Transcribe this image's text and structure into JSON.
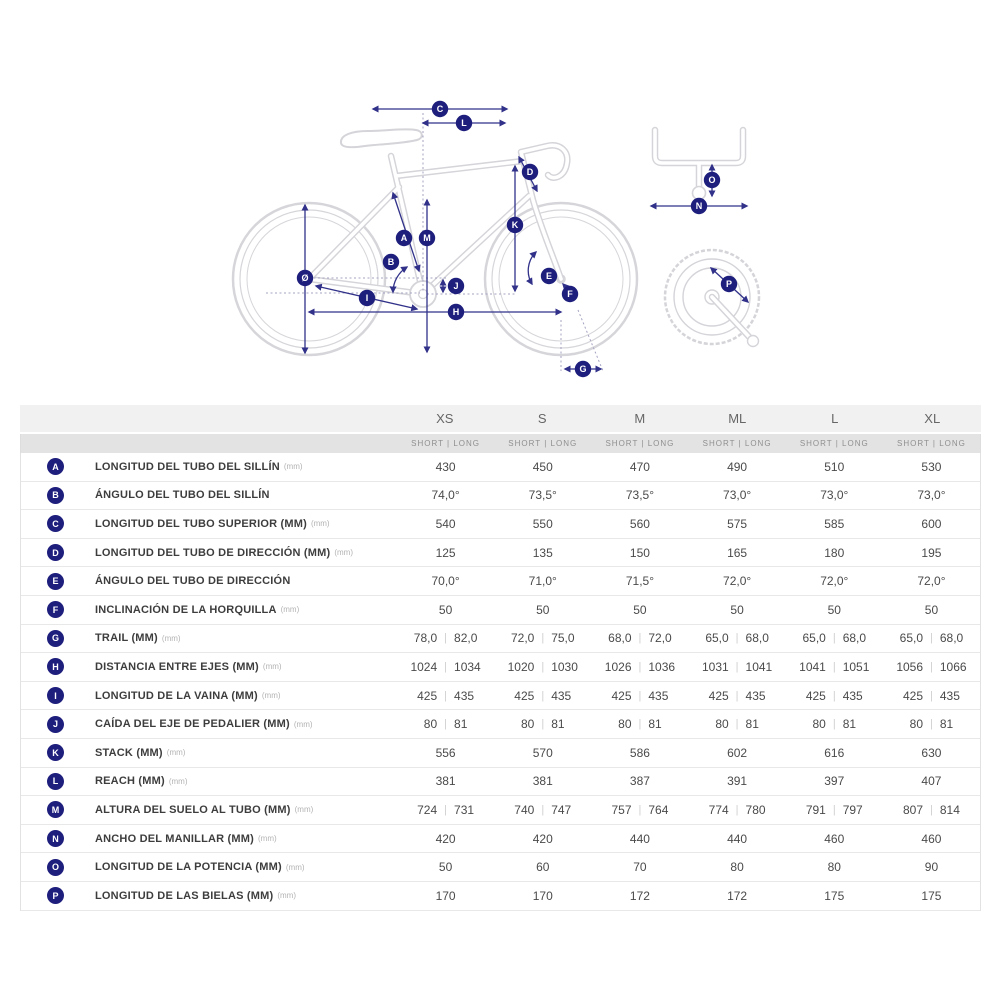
{
  "diagram": {
    "markers": {
      "a": "A",
      "b": "B",
      "c": "C",
      "d": "D",
      "e": "E",
      "f": "F",
      "g": "G",
      "h": "H",
      "i": "I",
      "j": "J",
      "k": "K",
      "l": "L",
      "m": "M",
      "n": "N",
      "o": "O",
      "p": "P",
      "wheel": "Ø"
    }
  },
  "table": {
    "sizes": [
      "XS",
      "S",
      "M",
      "ML",
      "L",
      "XL"
    ],
    "subheader": "SHORT | LONG",
    "rows": [
      {
        "letter": "A",
        "label": "LONGITUD DEL TUBO DEL SILLÍN",
        "unit": "(mm)",
        "cells": [
          [
            "430"
          ],
          [
            "450"
          ],
          [
            "470"
          ],
          [
            "490"
          ],
          [
            "510"
          ],
          [
            "530"
          ]
        ]
      },
      {
        "letter": "B",
        "label": "ÁNGULO DEL TUBO DEL SILLÍN",
        "unit": "",
        "cells": [
          [
            "74,0°"
          ],
          [
            "73,5°"
          ],
          [
            "73,5°"
          ],
          [
            "73,0°"
          ],
          [
            "73,0°"
          ],
          [
            "73,0°"
          ]
        ]
      },
      {
        "letter": "C",
        "label": "LONGITUD DEL TUBO SUPERIOR (MM)",
        "unit": "(mm)",
        "cells": [
          [
            "540"
          ],
          [
            "550"
          ],
          [
            "560"
          ],
          [
            "575"
          ],
          [
            "585"
          ],
          [
            "600"
          ]
        ]
      },
      {
        "letter": "D",
        "label": "LONGITUD DEL TUBO DE DIRECCIÓN (MM)",
        "unit": "(mm)",
        "cells": [
          [
            "125"
          ],
          [
            "135"
          ],
          [
            "150"
          ],
          [
            "165"
          ],
          [
            "180"
          ],
          [
            "195"
          ]
        ]
      },
      {
        "letter": "E",
        "label": "ÁNGULO DEL TUBO DE DIRECCIÓN",
        "unit": "",
        "cells": [
          [
            "70,0°"
          ],
          [
            "71,0°"
          ],
          [
            "71,5°"
          ],
          [
            "72,0°"
          ],
          [
            "72,0°"
          ],
          [
            "72,0°"
          ]
        ]
      },
      {
        "letter": "F",
        "label": "INCLINACIÓN DE LA HORQUILLA",
        "unit": "(mm)",
        "cells": [
          [
            "50"
          ],
          [
            "50"
          ],
          [
            "50"
          ],
          [
            "50"
          ],
          [
            "50"
          ],
          [
            "50"
          ]
        ]
      },
      {
        "letter": "G",
        "label": "TRAIL (MM)",
        "unit": "(mm)",
        "cells": [
          [
            "78,0",
            "82,0"
          ],
          [
            "72,0",
            "75,0"
          ],
          [
            "68,0",
            "72,0"
          ],
          [
            "65,0",
            "68,0"
          ],
          [
            "65,0",
            "68,0"
          ],
          [
            "65,0",
            "68,0"
          ]
        ]
      },
      {
        "letter": "H",
        "label": "DISTANCIA ENTRE EJES (MM)",
        "unit": "(mm)",
        "cells": [
          [
            "1024",
            "1034"
          ],
          [
            "1020",
            "1030"
          ],
          [
            "1026",
            "1036"
          ],
          [
            "1031",
            "1041"
          ],
          [
            "1041",
            "1051"
          ],
          [
            "1056",
            "1066"
          ]
        ]
      },
      {
        "letter": "I",
        "label": "LONGITUD DE LA VAINA (MM)",
        "unit": "(mm)",
        "cells": [
          [
            "425",
            "435"
          ],
          [
            "425",
            "435"
          ],
          [
            "425",
            "435"
          ],
          [
            "425",
            "435"
          ],
          [
            "425",
            "435"
          ],
          [
            "425",
            "435"
          ]
        ]
      },
      {
        "letter": "J",
        "label": "CAÍDA DEL EJE DE PEDALIER (MM)",
        "unit": "(mm)",
        "cells": [
          [
            "80",
            "81"
          ],
          [
            "80",
            "81"
          ],
          [
            "80",
            "81"
          ],
          [
            "80",
            "81"
          ],
          [
            "80",
            "81"
          ],
          [
            "80",
            "81"
          ]
        ]
      },
      {
        "letter": "K",
        "label": "STACK (MM)",
        "unit": "(mm)",
        "cells": [
          [
            "556"
          ],
          [
            "570"
          ],
          [
            "586"
          ],
          [
            "602"
          ],
          [
            "616"
          ],
          [
            "630"
          ]
        ]
      },
      {
        "letter": "L",
        "label": "REACH (MM)",
        "unit": "(mm)",
        "cells": [
          [
            "381"
          ],
          [
            "381"
          ],
          [
            "387"
          ],
          [
            "391"
          ],
          [
            "397"
          ],
          [
            "407"
          ]
        ]
      },
      {
        "letter": "M",
        "label": "ALTURA DEL SUELO AL TUBO (MM)",
        "unit": "(mm)",
        "cells": [
          [
            "724",
            "731"
          ],
          [
            "740",
            "747"
          ],
          [
            "757",
            "764"
          ],
          [
            "774",
            "780"
          ],
          [
            "791",
            "797"
          ],
          [
            "807",
            "814"
          ]
        ]
      },
      {
        "letter": "N",
        "label": "ANCHO DEL MANILLAR (MM)",
        "unit": "(mm)",
        "cells": [
          [
            "420"
          ],
          [
            "420"
          ],
          [
            "440"
          ],
          [
            "440"
          ],
          [
            "460"
          ],
          [
            "460"
          ]
        ]
      },
      {
        "letter": "O",
        "label": "LONGITUD DE LA POTENCIA (MM)",
        "unit": "(mm)",
        "cells": [
          [
            "50"
          ],
          [
            "60"
          ],
          [
            "70"
          ],
          [
            "80"
          ],
          [
            "80"
          ],
          [
            "90"
          ]
        ]
      },
      {
        "letter": "P",
        "label": "LONGITUD DE LAS BIELAS (MM)",
        "unit": "(mm)",
        "cells": [
          [
            "170"
          ],
          [
            "170"
          ],
          [
            "172"
          ],
          [
            "172"
          ],
          [
            "175"
          ],
          [
            "175"
          ]
        ]
      }
    ]
  }
}
